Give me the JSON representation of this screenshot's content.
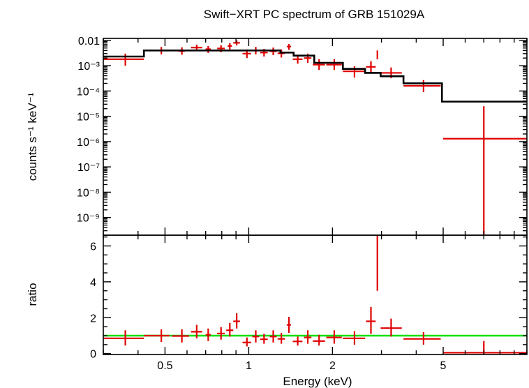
{
  "chart_data": [
    {
      "type": "scatter",
      "panel": "spectrum",
      "title": "Swift−XRT PC spectrum of GRB 151029A",
      "ylabel": "counts s⁻¹ keV⁻¹",
      "yscale": "log",
      "ylim": [
        2e-10,
        0.012
      ],
      "xscale": "log",
      "xlim": [
        0.3,
        10
      ],
      "y_tick_labels": [
        {
          "value": 0.01,
          "text": "0.01"
        },
        {
          "value": 0.001,
          "text": "10⁻³"
        },
        {
          "value": 0.0001,
          "text": "10⁻⁴"
        },
        {
          "value": 1e-05,
          "text": "10⁻⁵"
        },
        {
          "value": 1e-06,
          "text": "10⁻⁶"
        },
        {
          "value": 1e-07,
          "text": "10⁻⁷"
        },
        {
          "value": 1e-08,
          "text": "10⁻⁸"
        },
        {
          "value": 1e-09,
          "text": "10⁻⁹"
        }
      ],
      "series": [
        {
          "kind": "data",
          "color": "#e00000",
          "points": [
            {
              "x": 0.36,
              "xlo": 0.3,
              "xhi": 0.42,
              "y": 0.0018,
              "ylo": 0.001,
              "yhi": 0.003
            },
            {
              "x": 0.485,
              "xlo": 0.47,
              "xhi": 0.5,
              "y": 0.004,
              "ylo": 0.0028,
              "yhi": 0.0055
            },
            {
              "x": 0.575,
              "xlo": 0.56,
              "xhi": 0.59,
              "y": 0.0038,
              "ylo": 0.0027,
              "yhi": 0.0053
            },
            {
              "x": 0.65,
              "xlo": 0.62,
              "xhi": 0.68,
              "y": 0.0052,
              "ylo": 0.0038,
              "yhi": 0.0068
            },
            {
              "x": 0.715,
              "xlo": 0.7,
              "xhi": 0.73,
              "y": 0.0045,
              "ylo": 0.0032,
              "yhi": 0.006
            },
            {
              "x": 0.795,
              "xlo": 0.77,
              "xhi": 0.82,
              "y": 0.0048,
              "ylo": 0.0034,
              "yhi": 0.0064
            },
            {
              "x": 0.855,
              "xlo": 0.84,
              "xhi": 0.87,
              "y": 0.006,
              "ylo": 0.0044,
              "yhi": 0.0078
            },
            {
              "x": 0.905,
              "xlo": 0.88,
              "xhi": 0.93,
              "y": 0.008,
              "ylo": 0.0063,
              "yhi": 0.01
            },
            {
              "x": 0.985,
              "xlo": 0.95,
              "xhi": 1.02,
              "y": 0.003,
              "ylo": 0.002,
              "yhi": 0.0044
            },
            {
              "x": 1.06,
              "xlo": 1.03,
              "xhi": 1.09,
              "y": 0.004,
              "ylo": 0.0028,
              "yhi": 0.0055
            },
            {
              "x": 1.135,
              "xlo": 1.1,
              "xhi": 1.17,
              "y": 0.0033,
              "ylo": 0.0023,
              "yhi": 0.0046
            },
            {
              "x": 1.225,
              "xlo": 1.19,
              "xhi": 1.26,
              "y": 0.0037,
              "ylo": 0.0026,
              "yhi": 0.0052
            },
            {
              "x": 1.31,
              "xlo": 1.27,
              "xhi": 1.35,
              "y": 0.0031,
              "ylo": 0.0021,
              "yhi": 0.0044
            },
            {
              "x": 1.395,
              "xlo": 1.37,
              "xhi": 1.42,
              "y": 0.0057,
              "ylo": 0.0042,
              "yhi": 0.0072
            },
            {
              "x": 1.5,
              "xlo": 1.44,
              "xhi": 1.56,
              "y": 0.0018,
              "ylo": 0.0012,
              "yhi": 0.0027
            },
            {
              "x": 1.63,
              "xlo": 1.58,
              "xhi": 1.68,
              "y": 0.002,
              "ylo": 0.0013,
              "yhi": 0.003
            },
            {
              "x": 1.79,
              "xlo": 1.7,
              "xhi": 1.88,
              "y": 0.0011,
              "ylo": 0.00068,
              "yhi": 0.0018
            },
            {
              "x": 2.03,
              "xlo": 1.9,
              "xhi": 2.16,
              "y": 0.0011,
              "ylo": 0.00068,
              "yhi": 0.0018
            },
            {
              "x": 2.4,
              "xlo": 2.18,
              "xhi": 2.62,
              "y": 0.0006,
              "ylo": 0.00034,
              "yhi": 0.00095
            },
            {
              "x": 2.75,
              "xlo": 2.64,
              "xhi": 2.86,
              "y": 0.0009,
              "ylo": 0.00053,
              "yhi": 0.0015
            },
            {
              "x": 2.9,
              "xlo": 2.89,
              "xhi": 2.91,
              "y": 0.0028,
              "ylo": 0.0018,
              "yhi": 0.004
            },
            {
              "x": 3.25,
              "xlo": 2.98,
              "xhi": 3.55,
              "y": 0.00052,
              "ylo": 0.00032,
              "yhi": 0.00085
            },
            {
              "x": 4.25,
              "xlo": 3.6,
              "xhi": 4.9,
              "y": 0.00016,
              "ylo": 9e-05,
              "yhi": 0.00027
            },
            {
              "x": 7.0,
              "xlo": 5.0,
              "xhi": 10.0,
              "y": 1.3e-06,
              "ylo": 1e-12,
              "yhi": 2.5e-05
            }
          ]
        },
        {
          "kind": "model",
          "color": "#000000",
          "steps": [
            {
              "xlo": 0.3,
              "xhi": 0.42,
              "y": 0.0023
            },
            {
              "xlo": 0.42,
              "xhi": 0.94,
              "y": 0.004
            },
            {
              "xlo": 0.94,
              "xhi": 1.3,
              "y": 0.004
            },
            {
              "xlo": 1.3,
              "xhi": 1.45,
              "y": 0.0033
            },
            {
              "xlo": 1.45,
              "xhi": 1.72,
              "y": 0.0025
            },
            {
              "xlo": 1.72,
              "xhi": 2.18,
              "y": 0.0013
            },
            {
              "xlo": 2.18,
              "xhi": 2.62,
              "y": 0.00075
            },
            {
              "xlo": 2.62,
              "xhi": 2.98,
              "y": 0.00052
            },
            {
              "xlo": 2.98,
              "xhi": 3.6,
              "y": 0.00038
            },
            {
              "xlo": 3.6,
              "xhi": 4.95,
              "y": 0.0002
            },
            {
              "xlo": 4.95,
              "xhi": 10.0,
              "y": 3.8e-05
            }
          ]
        }
      ]
    },
    {
      "type": "scatter",
      "panel": "ratio",
      "xlabel": "Energy (keV)",
      "ylabel": "ratio",
      "xscale": "log",
      "xlim": [
        0.3,
        10
      ],
      "ylim": [
        -0.05,
        6.6
      ],
      "x_tick_labels": [
        {
          "value": 0.5,
          "text": "0.5"
        },
        {
          "value": 1,
          "text": "1"
        },
        {
          "value": 2,
          "text": "2"
        },
        {
          "value": 5,
          "text": "5"
        }
      ],
      "y_tick_labels": [
        {
          "value": 0,
          "text": "0"
        },
        {
          "value": 2,
          "text": "2"
        },
        {
          "value": 4,
          "text": "4"
        },
        {
          "value": 6,
          "text": "6"
        }
      ],
      "reference_line": {
        "y": 1.0,
        "color": "#00dd00"
      },
      "series": [
        {
          "kind": "data",
          "color": "#e00000",
          "points": [
            {
              "x": 0.36,
              "xlo": 0.3,
              "xhi": 0.42,
              "y": 0.85,
              "ylo": 0.45,
              "yhi": 1.3
            },
            {
              "x": 0.485,
              "xlo": 0.42,
              "xhi": 0.52,
              "y": 1.0,
              "ylo": 0.65,
              "yhi": 1.35
            },
            {
              "x": 0.575,
              "xlo": 0.53,
              "xhi": 0.61,
              "y": 0.98,
              "ylo": 0.62,
              "yhi": 1.35
            },
            {
              "x": 0.65,
              "xlo": 0.62,
              "xhi": 0.68,
              "y": 1.22,
              "ylo": 0.85,
              "yhi": 1.6
            },
            {
              "x": 0.715,
              "xlo": 0.7,
              "xhi": 0.73,
              "y": 1.05,
              "ylo": 0.7,
              "yhi": 1.4
            },
            {
              "x": 0.795,
              "xlo": 0.77,
              "xhi": 0.82,
              "y": 1.12,
              "ylo": 0.78,
              "yhi": 1.48
            },
            {
              "x": 0.855,
              "xlo": 0.83,
              "xhi": 0.88,
              "y": 1.3,
              "ylo": 0.95,
              "yhi": 1.7
            },
            {
              "x": 0.905,
              "xlo": 0.88,
              "xhi": 0.93,
              "y": 1.8,
              "ylo": 1.4,
              "yhi": 2.25
            },
            {
              "x": 0.985,
              "xlo": 0.95,
              "xhi": 1.02,
              "y": 0.62,
              "ylo": 0.4,
              "yhi": 0.9
            },
            {
              "x": 1.06,
              "xlo": 1.03,
              "xhi": 1.09,
              "y": 0.95,
              "ylo": 0.62,
              "yhi": 1.3
            },
            {
              "x": 1.135,
              "xlo": 1.1,
              "xhi": 1.17,
              "y": 0.8,
              "ylo": 0.55,
              "yhi": 1.1
            },
            {
              "x": 1.225,
              "xlo": 1.19,
              "xhi": 1.26,
              "y": 0.95,
              "ylo": 0.62,
              "yhi": 1.3
            },
            {
              "x": 1.31,
              "xlo": 1.27,
              "xhi": 1.35,
              "y": 0.82,
              "ylo": 0.55,
              "yhi": 1.15
            },
            {
              "x": 1.395,
              "xlo": 1.37,
              "xhi": 1.42,
              "y": 1.6,
              "ylo": 1.15,
              "yhi": 2.05
            },
            {
              "x": 1.5,
              "xlo": 1.44,
              "xhi": 1.56,
              "y": 0.68,
              "ylo": 0.45,
              "yhi": 0.95
            },
            {
              "x": 1.63,
              "xlo": 1.58,
              "xhi": 1.68,
              "y": 0.9,
              "ylo": 0.55,
              "yhi": 1.3
            },
            {
              "x": 1.79,
              "xlo": 1.7,
              "xhi": 1.88,
              "y": 0.7,
              "ylo": 0.45,
              "yhi": 1.05
            },
            {
              "x": 2.03,
              "xlo": 1.9,
              "xhi": 2.16,
              "y": 0.9,
              "ylo": 0.55,
              "yhi": 1.3
            },
            {
              "x": 2.4,
              "xlo": 2.18,
              "xhi": 2.62,
              "y": 0.85,
              "ylo": 0.5,
              "yhi": 1.25
            },
            {
              "x": 2.75,
              "xlo": 2.64,
              "xhi": 2.86,
              "y": 1.8,
              "ylo": 1.1,
              "yhi": 2.6
            },
            {
              "x": 2.9,
              "xlo": 2.89,
              "xhi": 2.91,
              "y": 6.3,
              "ylo": 3.5,
              "yhi": 6.6
            },
            {
              "x": 3.25,
              "xlo": 2.98,
              "xhi": 3.55,
              "y": 1.42,
              "ylo": 0.95,
              "yhi": 1.95
            },
            {
              "x": 4.25,
              "xlo": 3.6,
              "xhi": 4.9,
              "y": 0.82,
              "ylo": 0.5,
              "yhi": 1.2
            },
            {
              "x": 7.0,
              "xlo": 5.0,
              "xhi": 10.0,
              "y": 0.05,
              "ylo": -0.05,
              "yhi": 0.7
            }
          ]
        }
      ]
    }
  ]
}
